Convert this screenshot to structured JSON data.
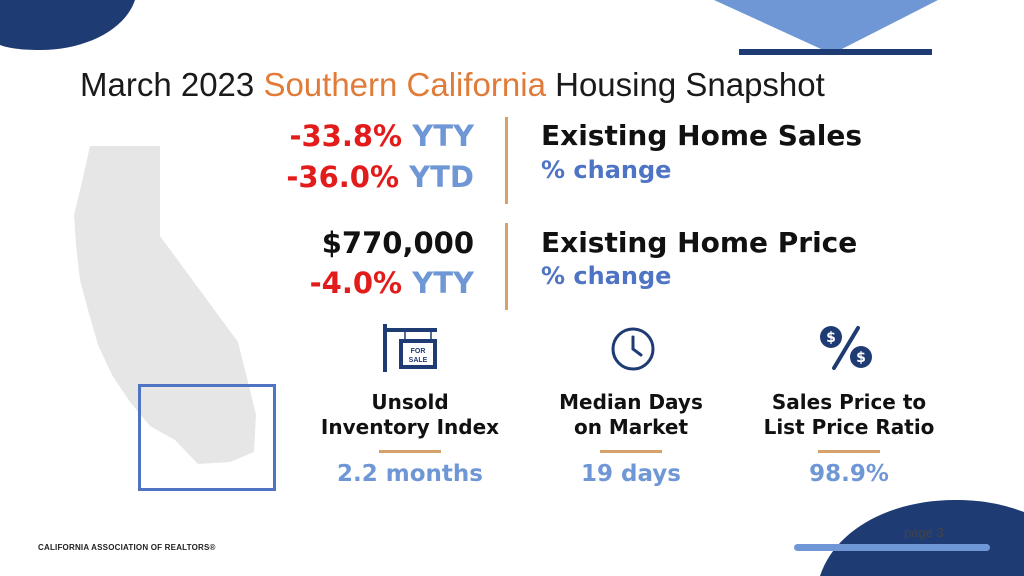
{
  "title": {
    "part1": "March 2023 ",
    "accent": "Southern California",
    "part2": " Housing Snapshot"
  },
  "sales": {
    "yty": {
      "value": "-33.8%",
      "suffix": " YTY"
    },
    "ytd": {
      "value": "-36.0%",
      "suffix": " YTD"
    },
    "heading": "Existing Home Sales",
    "sub": "% change"
  },
  "price": {
    "median": "$770,000",
    "yty": {
      "value": "-4.0%",
      "suffix": " YTY"
    },
    "heading": "Existing Home Price",
    "sub": "% change"
  },
  "kpis": [
    {
      "label1": "Unsold",
      "label2": "Inventory Index",
      "value": "2.2 months",
      "icon": "for-sale-sign-icon",
      "sign_text": "FOR SALE"
    },
    {
      "label1": "Median Days",
      "label2": "on Market",
      "value": "19 days",
      "icon": "clock-icon"
    },
    {
      "label1": "Sales Price to",
      "label2": "List Price Ratio",
      "value": "98.9%",
      "icon": "dollar-percent-icon"
    }
  ],
  "footer": "CALIFORNIA ASSOCIATION OF REALTORS®",
  "page": "page 3",
  "colors": {
    "navy": "#1f3b73",
    "light_blue": "#6f97d6",
    "orange": "#e07b39",
    "red": "#e21b1b",
    "gold": "#d4a26a",
    "map_gray": "#e6e6e6"
  }
}
